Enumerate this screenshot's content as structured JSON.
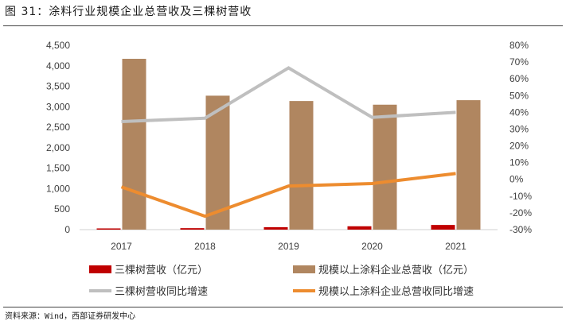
{
  "figure": {
    "title": "图 31：涂料行业规模企业总营收及三棵树营收",
    "source": "资料来源：Wind，西部证券研发中心"
  },
  "chart_data": {
    "type": "bar",
    "categories": [
      "2017",
      "2018",
      "2019",
      "2020",
      "2021"
    ],
    "left_axis": {
      "range": [
        0,
        4500
      ],
      "ticks": [
        "0",
        "500",
        "1,000",
        "1,500",
        "2,000",
        "2,500",
        "3,000",
        "3,500",
        "4,000",
        "4,500"
      ]
    },
    "right_axis": {
      "range": [
        -30,
        80
      ],
      "unit": "%",
      "ticks": [
        "-30%",
        "-20%",
        "-10%",
        "0%",
        "10%",
        "20%",
        "30%",
        "40%",
        "50%",
        "60%",
        "70%",
        "80%"
      ]
    },
    "series": [
      {
        "name": "三棵树营收（亿元）",
        "type": "bar",
        "axis": "left",
        "color": "#c00000",
        "values": [
          30,
          36,
          60,
          82,
          114
        ]
      },
      {
        "name": "规模以上涂料企业总营收（亿元）",
        "type": "bar",
        "axis": "left",
        "color": "#b08660",
        "values": [
          4170,
          3270,
          3140,
          3050,
          3160
        ]
      },
      {
        "name": "三棵树营收同比增速",
        "type": "line",
        "axis": "right",
        "color": "#bfbfbf",
        "values": [
          34.5,
          36.5,
          66.5,
          37,
          40
        ]
      },
      {
        "name": "规模以上涂料企业总营收同比增速",
        "type": "line",
        "axis": "right",
        "color": "#ed8c2f",
        "values": [
          -4.5,
          -22,
          -4,
          -2.5,
          3.5
        ]
      }
    ],
    "legend_position": "bottom",
    "grid": false
  }
}
